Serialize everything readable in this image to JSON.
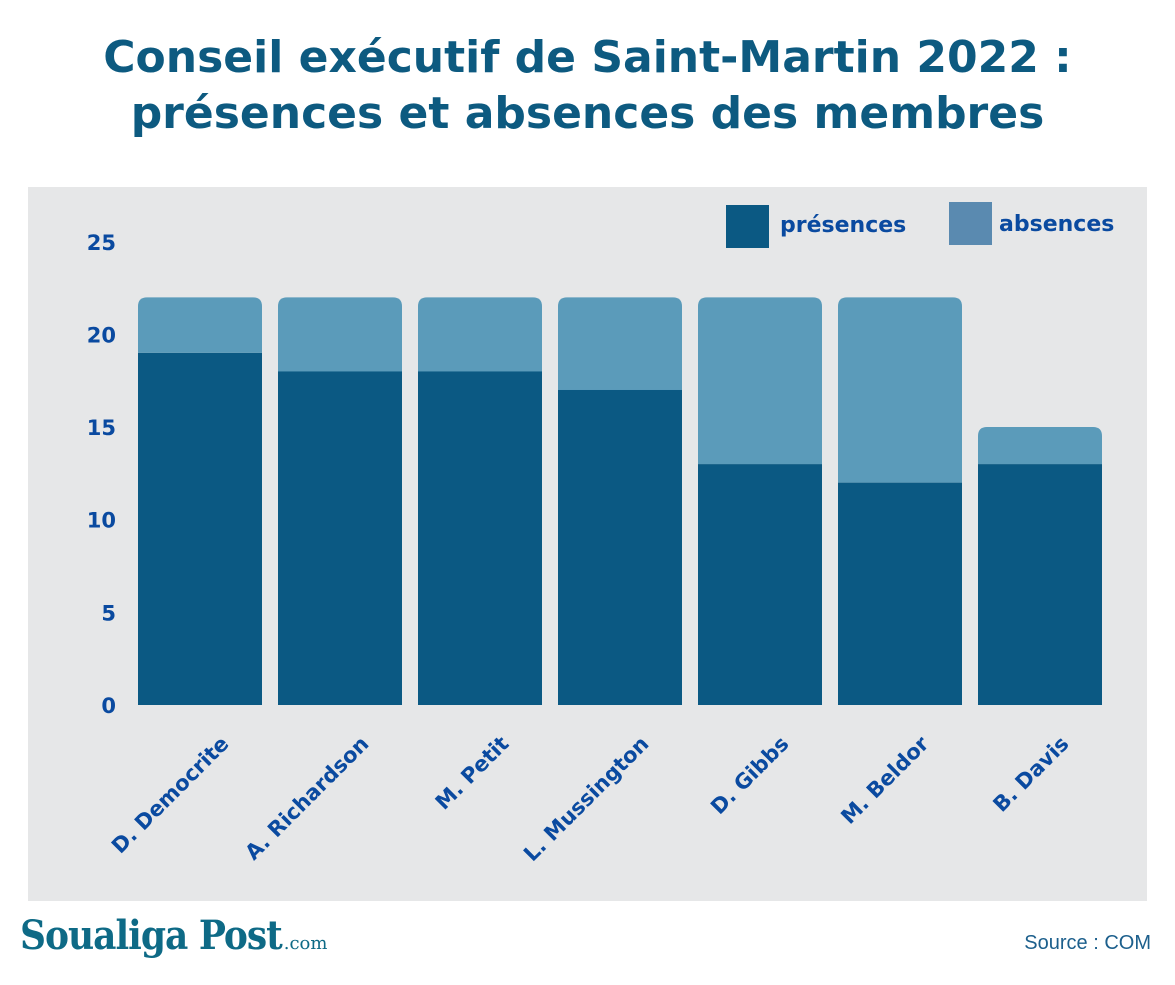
{
  "title_line1": "Conseil exécutif de Saint-Martin 2022 :",
  "title_line2": "présences et absences des membres",
  "source": "Source : COM",
  "logo": {
    "name": "Soualiga Post",
    "suffix": ".com"
  },
  "colors": {
    "presences": "#0b5983",
    "absences": "#5b9bba",
    "legend_absences": "#5a8ab0",
    "axis_text": "#0a4aa0",
    "panel": "#e6e7e8",
    "title": "#0d5a80"
  },
  "chart_data": {
    "type": "bar",
    "stacked": true,
    "categories": [
      "D. Democrite",
      "A. Richardson",
      "M. Petit",
      "L. Mussington",
      "D. Gibbs",
      "M. Beldor",
      "B. Davis"
    ],
    "series": [
      {
        "name": "présences",
        "values": [
          19,
          18,
          18,
          17,
          13,
          12,
          13
        ]
      },
      {
        "name": "absences",
        "values": [
          3,
          4,
          4,
          5,
          9,
          10,
          2
        ]
      }
    ],
    "ylim": [
      0,
      25
    ],
    "yticks": [
      0,
      5,
      10,
      15,
      20,
      25
    ],
    "grid": false,
    "legend_position": "top-right"
  }
}
